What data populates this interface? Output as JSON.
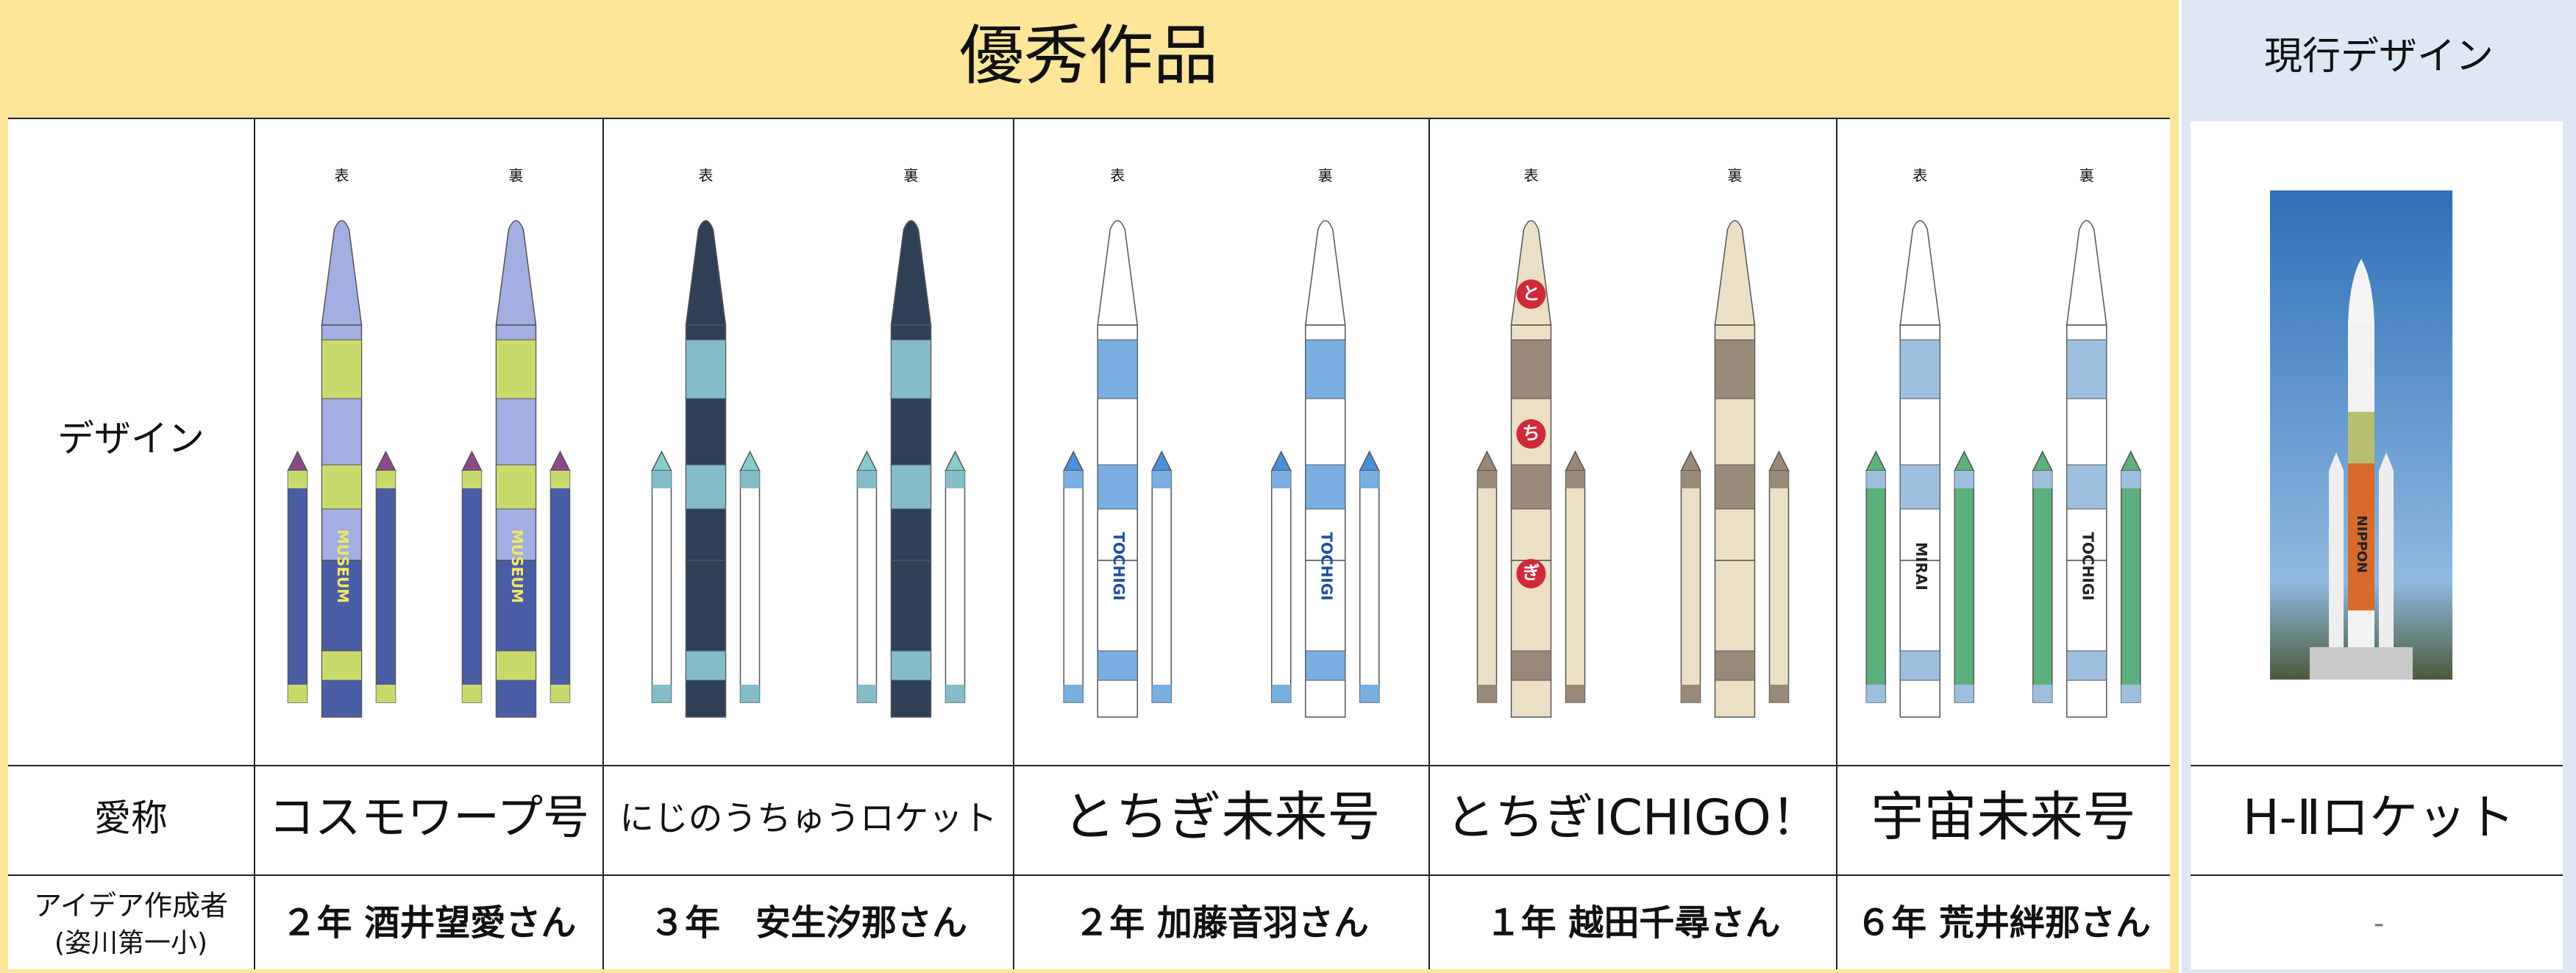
{
  "header": {
    "title": "優秀作品",
    "current_title": "現行デザイン"
  },
  "row_labels": {
    "design": "デザイン",
    "nickname": "愛称",
    "author": "アイデア作成者",
    "author_note": "(姿川第一小)"
  },
  "entries": [
    {
      "front": "表",
      "back": "裏",
      "front_texts": [
        "MUSEUM"
      ],
      "back_texts": [
        "MUSEUM"
      ],
      "nickname": "コスモワープ号",
      "author": "２年 酒井望愛さん"
    },
    {
      "front": "表",
      "back": "裏",
      "nickname": "にじのうちゅうロケット",
      "author": "３年　安生汐那さん"
    },
    {
      "front": "表",
      "back": "裏",
      "front_texts": [
        "TOCHIGI"
      ],
      "back_texts": [
        "TOCHIGI"
      ],
      "nickname": "とちぎ未来号",
      "author": "２年 加藤音羽さん"
    },
    {
      "front": "表",
      "back": "裏",
      "front_texts": [
        "と",
        "ち",
        "ぎ"
      ],
      "nickname": "とちぎICHIGO！",
      "author": "１年 越田千尋さん"
    },
    {
      "front": "表",
      "back": "裏",
      "front_texts": [
        "MIRAI"
      ],
      "back_texts": [
        "TOCHIGI"
      ],
      "nickname": "宇宙未来号",
      "author": "６年 荒井絆那さん"
    }
  ],
  "current": {
    "photo_text": "NIPPON",
    "nickname": "H-Ⅱロケット",
    "author": "-"
  }
}
